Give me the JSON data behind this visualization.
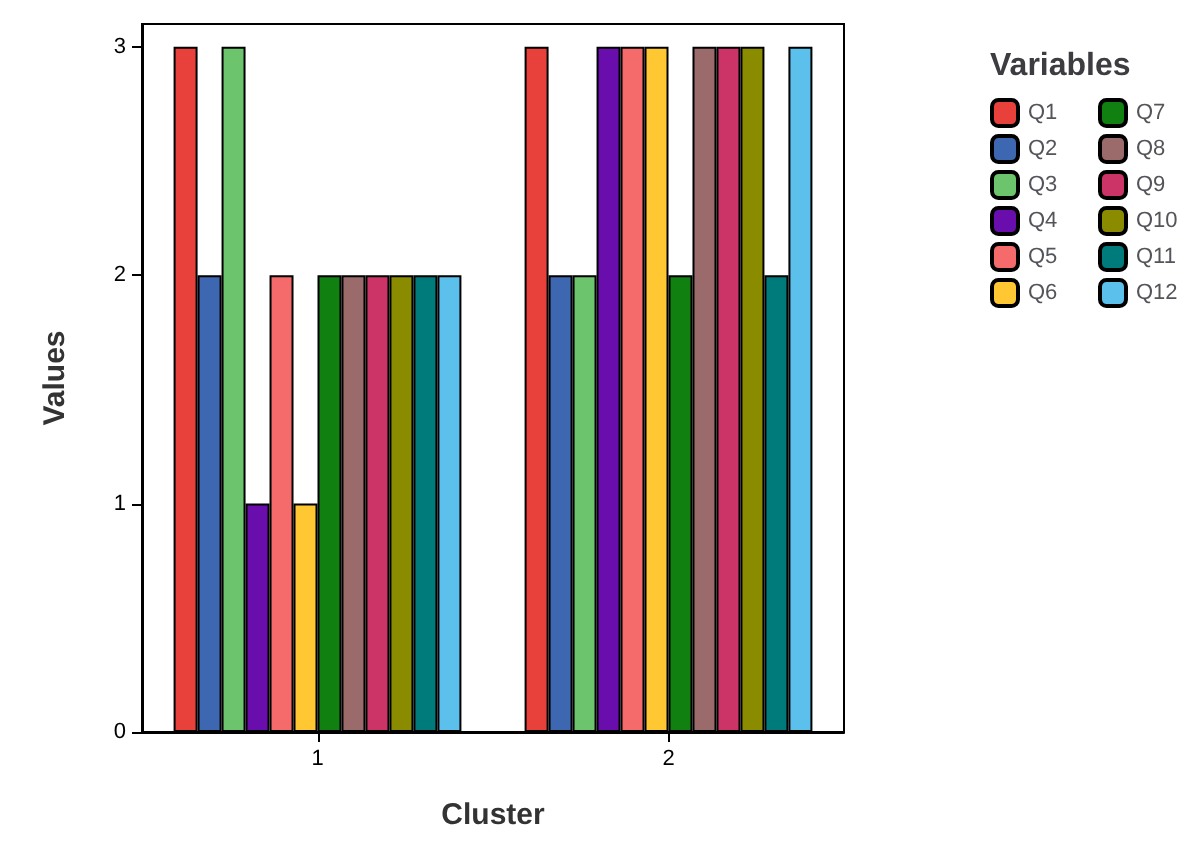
{
  "chart_data": {
    "type": "bar",
    "xlabel": "Cluster",
    "ylabel": "Values",
    "legend_title": "Variables",
    "legend": "top right",
    "grid": false,
    "categories": [
      "1",
      "2"
    ],
    "ylim": [
      0,
      3.1
    ],
    "yticks": [
      0,
      1,
      2,
      3
    ],
    "series": [
      {
        "name": "Q1",
        "color": "#e8413c",
        "values": [
          3,
          3
        ]
      },
      {
        "name": "Q2",
        "color": "#3e67b1",
        "values": [
          2,
          2
        ]
      },
      {
        "name": "Q3",
        "color": "#6cc46c",
        "values": [
          3,
          2
        ]
      },
      {
        "name": "Q4",
        "color": "#6a0dad",
        "values": [
          1,
          3
        ]
      },
      {
        "name": "Q5",
        "color": "#f56a6a",
        "values": [
          2,
          3
        ]
      },
      {
        "name": "Q6",
        "color": "#ffc832",
        "values": [
          1,
          3
        ]
      },
      {
        "name": "Q7",
        "color": "#108010",
        "values": [
          2,
          2
        ]
      },
      {
        "name": "Q8",
        "color": "#9b6b6b",
        "values": [
          2,
          3
        ]
      },
      {
        "name": "Q9",
        "color": "#cc3366",
        "values": [
          2,
          3
        ]
      },
      {
        "name": "Q10",
        "color": "#8b8b00",
        "values": [
          2,
          3
        ]
      },
      {
        "name": "Q11",
        "color": "#007b7b",
        "values": [
          2,
          2
        ]
      },
      {
        "name": "Q12",
        "color": "#5bc0eb",
        "values": [
          2,
          3
        ]
      }
    ]
  }
}
